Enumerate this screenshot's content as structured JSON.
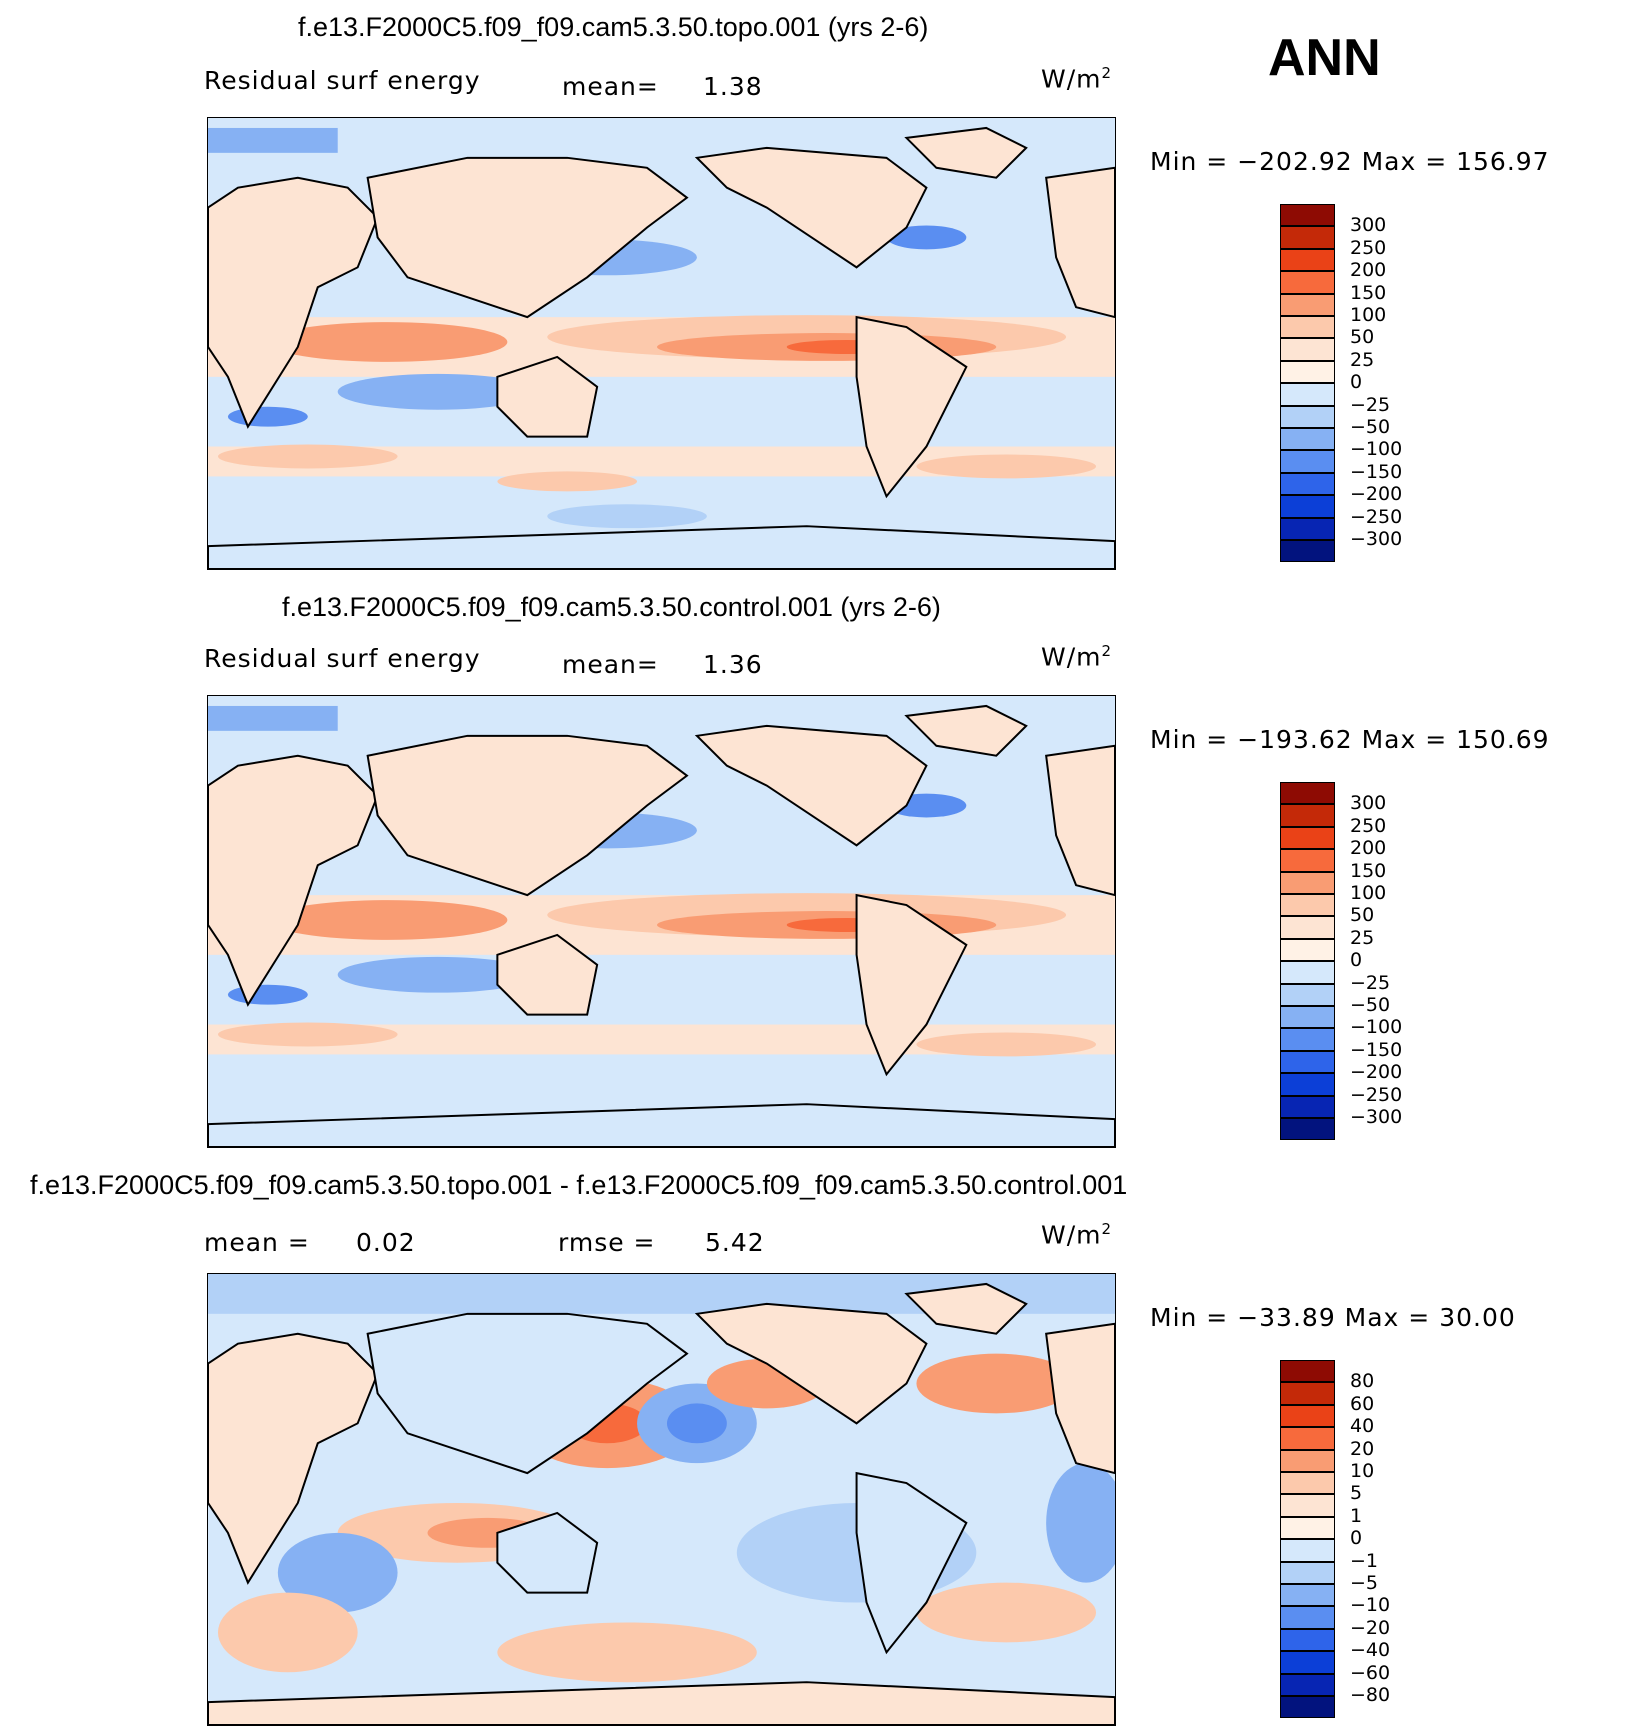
{
  "season": "ANN",
  "colors": {
    "warm": [
      "#fde4d3",
      "#fcc9ac",
      "#f99c73",
      "#f76a3c",
      "#ea4217",
      "#c42908",
      "#8e0b03"
    ],
    "cool": [
      "#d5e8fb",
      "#b2d1f7",
      "#86b1f3",
      "#5a8ef1",
      "#2e64ea",
      "#0c3fd7",
      "#0725b3",
      "#02137e"
    ]
  },
  "panels": [
    {
      "title": "f.e13.F2000C5.f09_f09.cam5.3.50.topo.001 (yrs 2-6)",
      "left_label": "Residual surf energy",
      "stat_label": "mean=",
      "stat_value": "1.38",
      "units": "W/m",
      "units_sup": "2",
      "min_max": "Min = −202.92 Max = 156.97",
      "levels": [
        "300",
        "250",
        "200",
        "150",
        "100",
        "50",
        "25",
        "0",
        "−25",
        "−50",
        "−100",
        "−150",
        "−200",
        "−250",
        "−300"
      ]
    },
    {
      "title": "f.e13.F2000C5.f09_f09.cam5.3.50.control.001 (yrs 2-6)",
      "left_label": "Residual surf energy",
      "stat_label": "mean=",
      "stat_value": "1.36",
      "units": "W/m",
      "units_sup": "2",
      "min_max": "Min = −193.62 Max = 150.69",
      "levels": [
        "300",
        "250",
        "200",
        "150",
        "100",
        "50",
        "25",
        "0",
        "−25",
        "−50",
        "−100",
        "−150",
        "−200",
        "−250",
        "−300"
      ]
    },
    {
      "title": "f.e13.F2000C5.f09_f09.cam5.3.50.topo.001 - f.e13.F2000C5.f09_f09.cam5.3.50.control.001",
      "left_label": "mean =",
      "left_value": "0.02",
      "stat_label": "rmse =",
      "stat_value": "5.42",
      "units": "W/m",
      "units_sup": "2",
      "min_max": "Min = −33.89 Max =  30.00",
      "levels": [
        "80",
        "60",
        "40",
        "20",
        "10",
        "5",
        "1",
        "0",
        "−1",
        "−5",
        "−10",
        "−20",
        "−40",
        "−60",
        "−80"
      ]
    }
  ]
}
